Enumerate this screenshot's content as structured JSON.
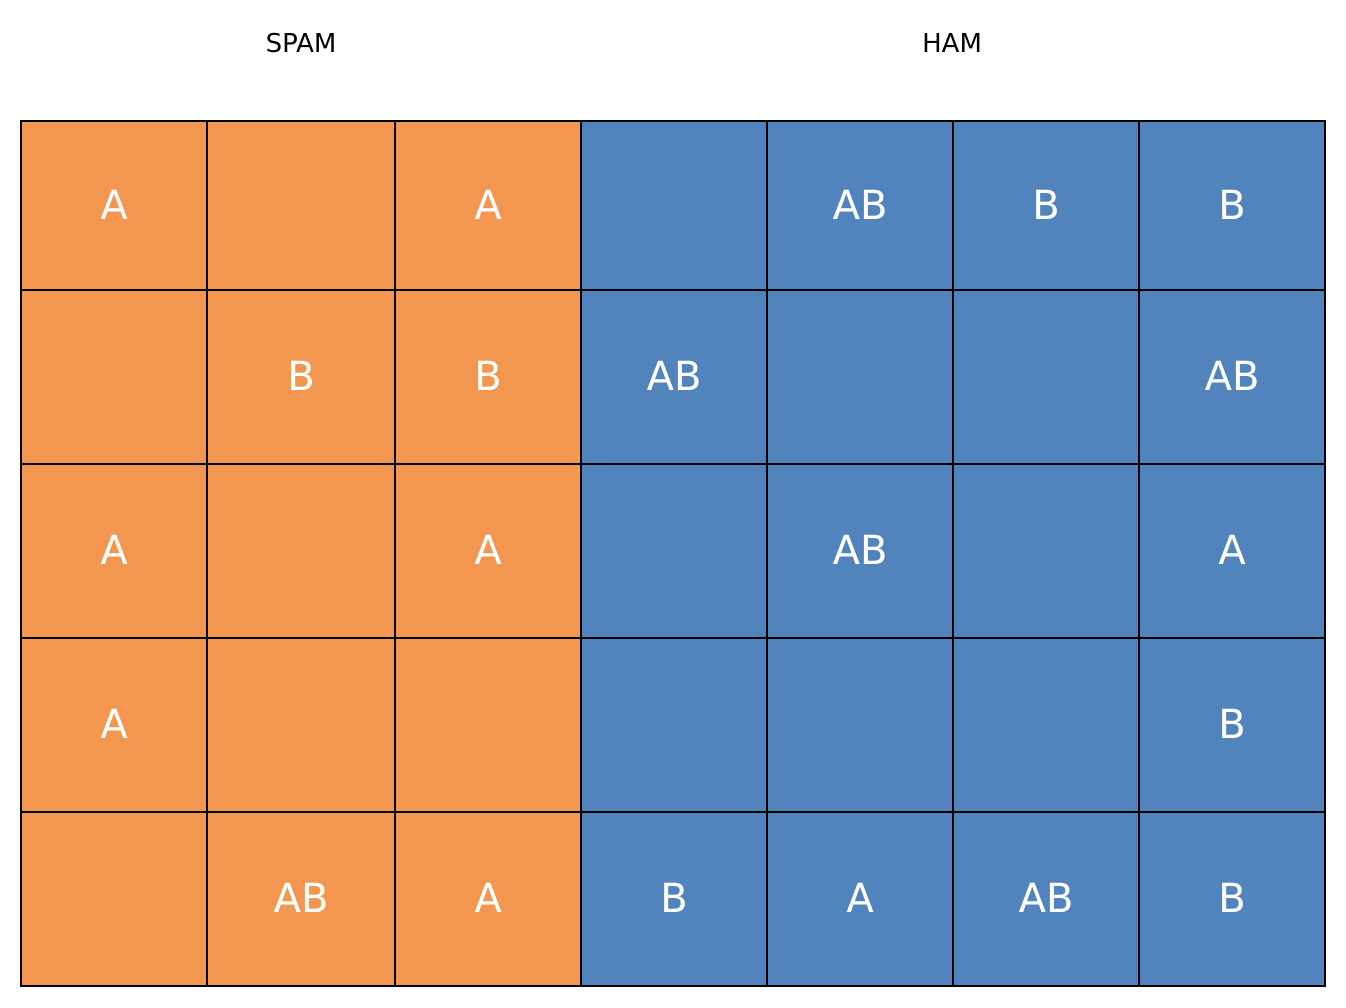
{
  "groups": {
    "spam": {
      "label": "SPAM",
      "color": "#f39750",
      "columns": 3
    },
    "ham": {
      "label": "HAM",
      "color": "#5183bd",
      "columns": 4
    }
  },
  "rows": [
    [
      "A",
      "",
      "A",
      "",
      "AB",
      "B",
      "B"
    ],
    [
      "",
      "B",
      "B",
      "AB",
      "",
      "",
      "AB"
    ],
    [
      "A",
      "",
      "A",
      "",
      "AB",
      "",
      "A"
    ],
    [
      "A",
      "",
      "",
      "",
      "",
      "",
      "B"
    ],
    [
      "",
      "AB",
      "A",
      "B",
      "A",
      "AB",
      "B"
    ]
  ]
}
